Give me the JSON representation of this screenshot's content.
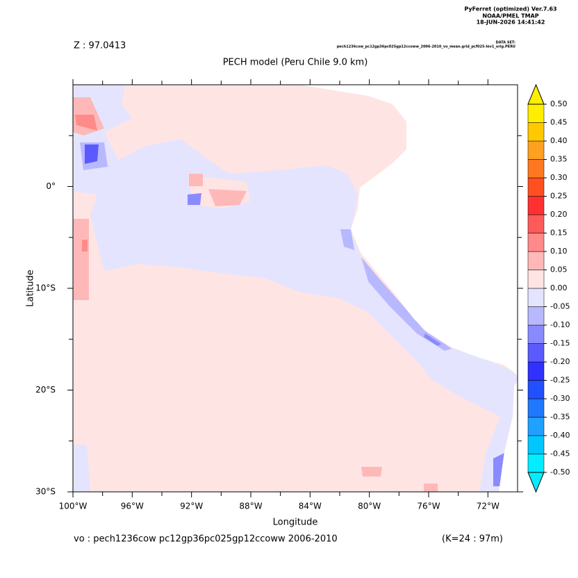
{
  "chart_data": {
    "type": "heatmap",
    "title": "PECH model (Peru Chile 9.0 km)",
    "header": [
      "PyFerret (optimized) Ver.7.63",
      "NOAA/PMEL TMAP",
      "18-JUN-2026 14:41:42"
    ],
    "z_label": "Z : 97.0413",
    "dataset_title": "DATA SET:",
    "dataset": "pech1236cow_pc12gp36pc025gp12ccoww_2006-2010_vo_mean.grid_pcf025-lev1_orig.PERU",
    "xlabel": "Longitude",
    "ylabel": "Latitude",
    "footer_left": "vo : pech1236cow pc12gp36pc025gp12ccoww 2006-2010",
    "footer_right": "(K=24 : 97m)",
    "xlim": [
      -100,
      -70
    ],
    "ylim": [
      -30,
      10
    ],
    "xticks": [
      {
        "value": -100,
        "label": "100°W"
      },
      {
        "value": -96,
        "label": "96°W"
      },
      {
        "value": -92,
        "label": "92°W"
      },
      {
        "value": -88,
        "label": "88°W"
      },
      {
        "value": -84,
        "label": "84°W"
      },
      {
        "value": -80,
        "label": "80°W"
      },
      {
        "value": -76,
        "label": "76°W"
      },
      {
        "value": -72,
        "label": "72°W"
      }
    ],
    "xminorticks": [
      -98,
      -94,
      -90,
      -86,
      -82,
      -78,
      -74
    ],
    "yticks": [
      {
        "value": 0,
        "label": "0°"
      },
      {
        "value": -10,
        "label": "10°S"
      },
      {
        "value": -20,
        "label": "20°S"
      },
      {
        "value": -30,
        "label": "30°S"
      }
    ],
    "yminorticks": [
      5,
      -5,
      -15,
      -25
    ],
    "colorbar": {
      "levels": [
        {
          "value": -0.5,
          "label": "-0.50"
        },
        {
          "value": -0.45,
          "label": "-0.45"
        },
        {
          "value": -0.4,
          "label": "-0.40"
        },
        {
          "value": -0.35,
          "label": "-0.35"
        },
        {
          "value": -0.3,
          "label": "-0.30"
        },
        {
          "value": -0.25,
          "label": "-0.25"
        },
        {
          "value": -0.2,
          "label": "-0.20"
        },
        {
          "value": -0.15,
          "label": "-0.15"
        },
        {
          "value": -0.1,
          "label": "-0.10"
        },
        {
          "value": -0.05,
          "label": "-0.05"
        },
        {
          "value": 0,
          "label": "0.00"
        },
        {
          "value": 0.05,
          "label": "0.05"
        },
        {
          "value": 0.1,
          "label": "0.10"
        },
        {
          "value": 0.15,
          "label": "0.15"
        },
        {
          "value": 0.2,
          "label": "0.20"
        },
        {
          "value": 0.25,
          "label": "0.25"
        },
        {
          "value": 0.3,
          "label": "0.30"
        },
        {
          "value": 0.35,
          "label": "0.35"
        },
        {
          "value": 0.4,
          "label": "0.40"
        },
        {
          "value": 0.45,
          "label": "0.45"
        },
        {
          "value": 0.5,
          "label": "0.50"
        }
      ],
      "colors": [
        "#00eeff",
        "#00c8ff",
        "#20a0ff",
        "#2078ff",
        "#2050ff",
        "#3030ff",
        "#5a5aff",
        "#8a8aff",
        "#b8b8ff",
        "#e4e4ff",
        "#ffe4e4",
        "#ffb8b8",
        "#ff8a8a",
        "#ff5a5a",
        "#ff3030",
        "#ff5020",
        "#ff7820",
        "#ffa020",
        "#ffc800",
        "#ffee00"
      ]
    }
  }
}
